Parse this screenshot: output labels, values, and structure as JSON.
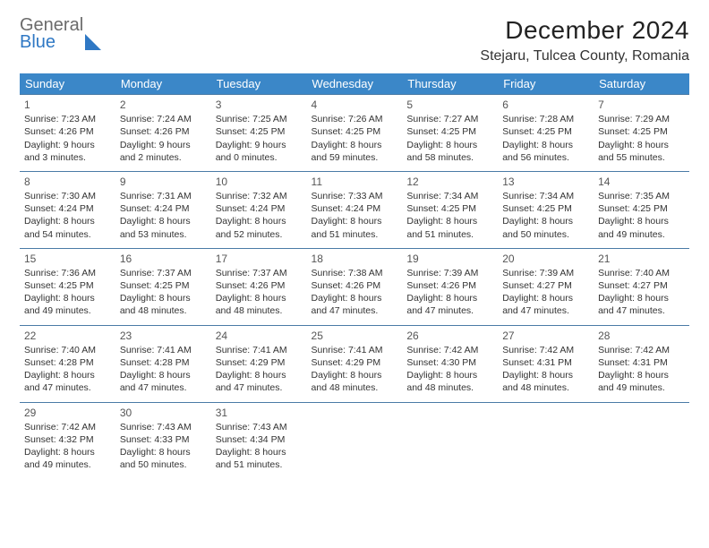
{
  "logo": {
    "general": "General",
    "blue": "Blue"
  },
  "title": "December 2024",
  "location": "Stejaru, Tulcea County, Romania",
  "colors": {
    "header_bg": "#3b87c8",
    "header_text": "#ffffff",
    "week_border": "#4a7ba6",
    "logo_blue": "#2f78c4",
    "logo_gray": "#6b6b6b"
  },
  "day_names": [
    "Sunday",
    "Monday",
    "Tuesday",
    "Wednesday",
    "Thursday",
    "Friday",
    "Saturday"
  ],
  "weeks": [
    [
      {
        "n": "1",
        "sunrise": "7:23 AM",
        "sunset": "4:26 PM",
        "daylight": "9 hours and 3 minutes."
      },
      {
        "n": "2",
        "sunrise": "7:24 AM",
        "sunset": "4:26 PM",
        "daylight": "9 hours and 2 minutes."
      },
      {
        "n": "3",
        "sunrise": "7:25 AM",
        "sunset": "4:25 PM",
        "daylight": "9 hours and 0 minutes."
      },
      {
        "n": "4",
        "sunrise": "7:26 AM",
        "sunset": "4:25 PM",
        "daylight": "8 hours and 59 minutes."
      },
      {
        "n": "5",
        "sunrise": "7:27 AM",
        "sunset": "4:25 PM",
        "daylight": "8 hours and 58 minutes."
      },
      {
        "n": "6",
        "sunrise": "7:28 AM",
        "sunset": "4:25 PM",
        "daylight": "8 hours and 56 minutes."
      },
      {
        "n": "7",
        "sunrise": "7:29 AM",
        "sunset": "4:25 PM",
        "daylight": "8 hours and 55 minutes."
      }
    ],
    [
      {
        "n": "8",
        "sunrise": "7:30 AM",
        "sunset": "4:24 PM",
        "daylight": "8 hours and 54 minutes."
      },
      {
        "n": "9",
        "sunrise": "7:31 AM",
        "sunset": "4:24 PM",
        "daylight": "8 hours and 53 minutes."
      },
      {
        "n": "10",
        "sunrise": "7:32 AM",
        "sunset": "4:24 PM",
        "daylight": "8 hours and 52 minutes."
      },
      {
        "n": "11",
        "sunrise": "7:33 AM",
        "sunset": "4:24 PM",
        "daylight": "8 hours and 51 minutes."
      },
      {
        "n": "12",
        "sunrise": "7:34 AM",
        "sunset": "4:25 PM",
        "daylight": "8 hours and 51 minutes."
      },
      {
        "n": "13",
        "sunrise": "7:34 AM",
        "sunset": "4:25 PM",
        "daylight": "8 hours and 50 minutes."
      },
      {
        "n": "14",
        "sunrise": "7:35 AM",
        "sunset": "4:25 PM",
        "daylight": "8 hours and 49 minutes."
      }
    ],
    [
      {
        "n": "15",
        "sunrise": "7:36 AM",
        "sunset": "4:25 PM",
        "daylight": "8 hours and 49 minutes."
      },
      {
        "n": "16",
        "sunrise": "7:37 AM",
        "sunset": "4:25 PM",
        "daylight": "8 hours and 48 minutes."
      },
      {
        "n": "17",
        "sunrise": "7:37 AM",
        "sunset": "4:26 PM",
        "daylight": "8 hours and 48 minutes."
      },
      {
        "n": "18",
        "sunrise": "7:38 AM",
        "sunset": "4:26 PM",
        "daylight": "8 hours and 47 minutes."
      },
      {
        "n": "19",
        "sunrise": "7:39 AM",
        "sunset": "4:26 PM",
        "daylight": "8 hours and 47 minutes."
      },
      {
        "n": "20",
        "sunrise": "7:39 AM",
        "sunset": "4:27 PM",
        "daylight": "8 hours and 47 minutes."
      },
      {
        "n": "21",
        "sunrise": "7:40 AM",
        "sunset": "4:27 PM",
        "daylight": "8 hours and 47 minutes."
      }
    ],
    [
      {
        "n": "22",
        "sunrise": "7:40 AM",
        "sunset": "4:28 PM",
        "daylight": "8 hours and 47 minutes."
      },
      {
        "n": "23",
        "sunrise": "7:41 AM",
        "sunset": "4:28 PM",
        "daylight": "8 hours and 47 minutes."
      },
      {
        "n": "24",
        "sunrise": "7:41 AM",
        "sunset": "4:29 PM",
        "daylight": "8 hours and 47 minutes."
      },
      {
        "n": "25",
        "sunrise": "7:41 AM",
        "sunset": "4:29 PM",
        "daylight": "8 hours and 48 minutes."
      },
      {
        "n": "26",
        "sunrise": "7:42 AM",
        "sunset": "4:30 PM",
        "daylight": "8 hours and 48 minutes."
      },
      {
        "n": "27",
        "sunrise": "7:42 AM",
        "sunset": "4:31 PM",
        "daylight": "8 hours and 48 minutes."
      },
      {
        "n": "28",
        "sunrise": "7:42 AM",
        "sunset": "4:31 PM",
        "daylight": "8 hours and 49 minutes."
      }
    ],
    [
      {
        "n": "29",
        "sunrise": "7:42 AM",
        "sunset": "4:32 PM",
        "daylight": "8 hours and 49 minutes."
      },
      {
        "n": "30",
        "sunrise": "7:43 AM",
        "sunset": "4:33 PM",
        "daylight": "8 hours and 50 minutes."
      },
      {
        "n": "31",
        "sunrise": "7:43 AM",
        "sunset": "4:34 PM",
        "daylight": "8 hours and 51 minutes."
      },
      null,
      null,
      null,
      null
    ]
  ],
  "labels": {
    "sunrise": "Sunrise: ",
    "sunset": "Sunset: ",
    "daylight": "Daylight: "
  }
}
